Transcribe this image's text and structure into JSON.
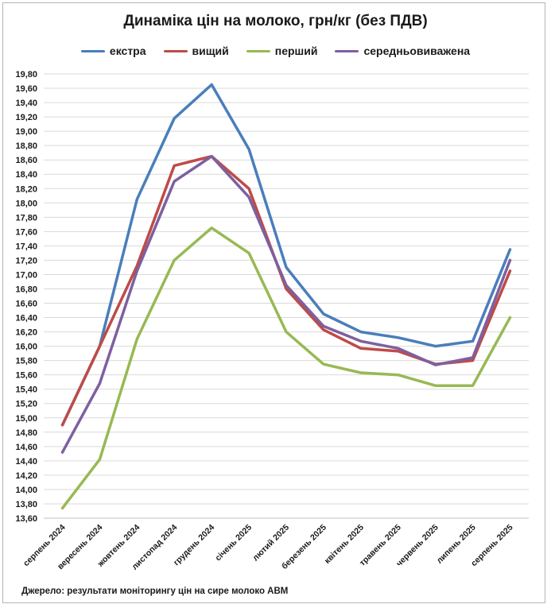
{
  "chart_data": {
    "type": "line",
    "title": "Динаміка цін на молоко, грн/кг (без ПДВ)",
    "xlabel": "",
    "ylabel": "",
    "ylim": [
      13.6,
      19.8
    ],
    "ytick_step": 0.2,
    "grid": true,
    "legend_position": "top",
    "categories": [
      "серпень 2024",
      "вересень 2024",
      "жовтень 2024",
      "листопад 2024",
      "грудень 2024",
      "січень 2025",
      "лютий 2025",
      "березень 2025",
      "квітень 2025",
      "травень 2025",
      "червень 2025",
      "липень 2025",
      "серпень 2025"
    ],
    "y_ticks": [
      "13,60",
      "13,80",
      "14,00",
      "14,20",
      "14,40",
      "14,60",
      "14,80",
      "15,00",
      "15,20",
      "15,40",
      "15,60",
      "15,80",
      "16,00",
      "16,20",
      "16,40",
      "16,60",
      "16,80",
      "17,00",
      "17,20",
      "17,40",
      "17,60",
      "17,80",
      "18,00",
      "18,20",
      "18,40",
      "18,60",
      "18,80",
      "19,00",
      "19,20",
      "19,40",
      "19,60",
      "19,80"
    ],
    "series": [
      {
        "name": "екстра",
        "color": "#4a7ebb",
        "values": [
          14.9,
          16.0,
          18.05,
          19.18,
          19.65,
          18.75,
          17.1,
          16.45,
          16.2,
          16.12,
          16.0,
          16.07,
          17.35
        ]
      },
      {
        "name": "вищий",
        "color": "#be4b48",
        "values": [
          14.9,
          16.0,
          17.12,
          18.52,
          18.65,
          18.2,
          16.8,
          16.23,
          15.97,
          15.93,
          15.75,
          15.8,
          17.05
        ]
      },
      {
        "name": "перший",
        "color": "#98b954",
        "values": [
          13.74,
          14.42,
          16.1,
          17.2,
          17.65,
          17.3,
          16.2,
          15.75,
          15.63,
          15.6,
          15.45,
          15.45,
          16.4
        ]
      },
      {
        "name": "середньовиважена",
        "color": "#7d60a0",
        "values": [
          14.52,
          15.48,
          17.05,
          18.3,
          18.65,
          18.08,
          16.85,
          16.28,
          16.07,
          15.97,
          15.74,
          15.84,
          17.2
        ]
      }
    ]
  },
  "source_text": "Джерело: результати моніторингу цін на сире молоко АВМ"
}
